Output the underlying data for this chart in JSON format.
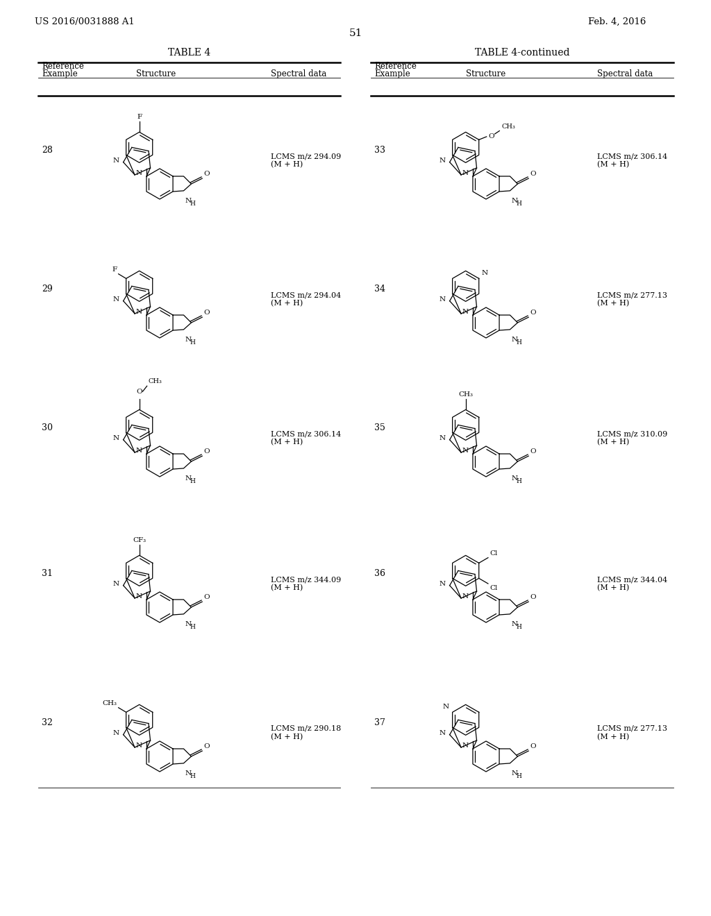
{
  "background_color": "#ffffff",
  "page_header_left": "US 2016/0031888 A1",
  "page_header_right": "Feb. 4, 2016",
  "page_number": "51",
  "left_table_title": "TABLE 4",
  "right_table_title": "TABLE 4-continued",
  "left_entries": [
    {
      "example": "28",
      "spectral": "LCMS m/z 294.09\n(M + H)",
      "sub": "F",
      "sub_pos": "para_F"
    },
    {
      "example": "29",
      "spectral": "LCMS m/z 294.04\n(M + H)",
      "sub": "F",
      "sub_pos": "meta_F"
    },
    {
      "example": "30",
      "spectral": "LCMS m/z 306.14\n(M + H)",
      "sub": "OCH3",
      "sub_pos": "para_OCH3"
    },
    {
      "example": "31",
      "spectral": "LCMS m/z 344.09\n(M + H)",
      "sub": "CF3",
      "sub_pos": "para_CF3"
    },
    {
      "example": "32",
      "spectral": "LCMS m/z 290.18\n(M + H)",
      "sub": "CH3",
      "sub_pos": "meta_CH3"
    }
  ],
  "right_entries": [
    {
      "example": "33",
      "spectral": "LCMS m/z 306.14\n(M + H)",
      "sub": "OCH3",
      "sub_pos": "ortho_OCH3"
    },
    {
      "example": "34",
      "spectral": "LCMS m/z 277.13\n(M + H)",
      "sub": "N",
      "sub_pos": "pyridyl_2"
    },
    {
      "example": "35",
      "spectral": "LCMS m/z 310.09\n(M + H)",
      "sub": "CH3",
      "sub_pos": "para_CH3"
    },
    {
      "example": "36",
      "spectral": "LCMS m/z 344.04\n(M + H)",
      "sub": "Cl",
      "sub_pos": "dichloro"
    },
    {
      "example": "37",
      "spectral": "LCMS m/z 277.13\n(M + H)",
      "sub": "N",
      "sub_pos": "pyridyl_3"
    }
  ]
}
